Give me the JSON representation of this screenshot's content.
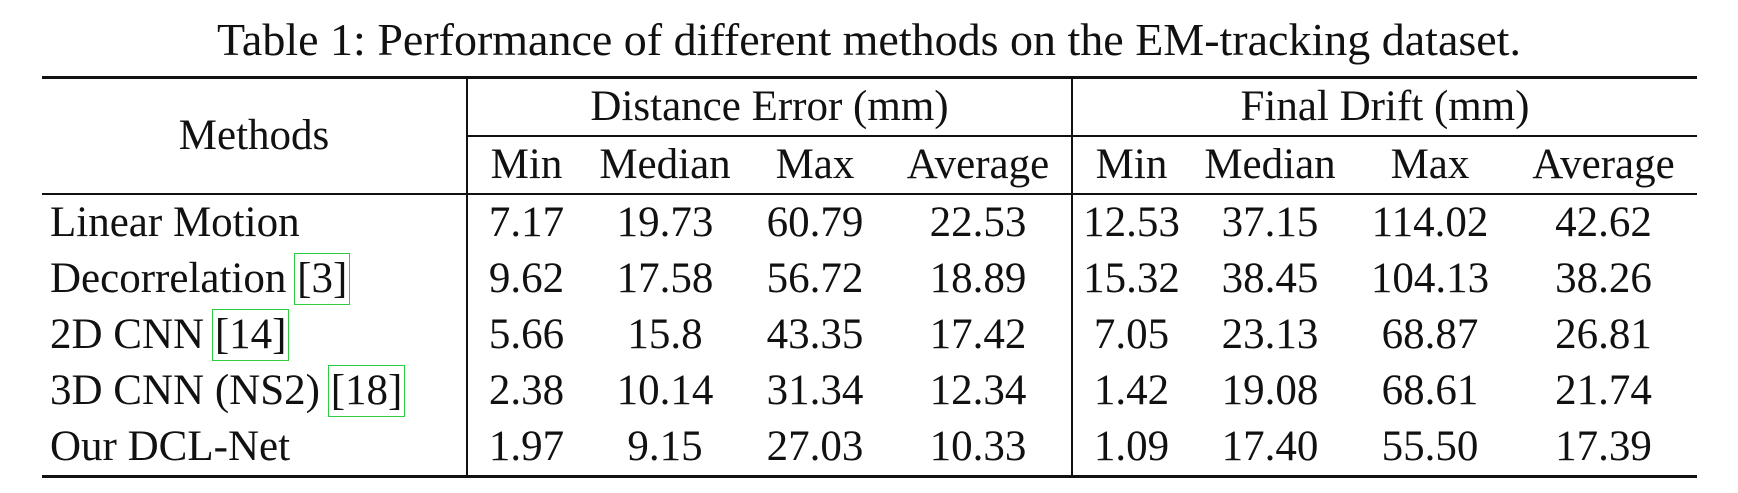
{
  "caption": "Table 1: Performance of different methods on the EM-tracking dataset.",
  "table": {
    "method_header": "Methods",
    "groups": [
      "Distance Error (mm)",
      "Final Drift (mm)"
    ],
    "subheaders": [
      "Min",
      "Median",
      "Max",
      "Average",
      "Min",
      "Median",
      "Max",
      "Average"
    ],
    "rows": [
      {
        "method": "Linear Motion",
        "values": [
          "7.17",
          "19.73",
          "60.79",
          "22.53",
          "12.53",
          "37.15",
          "114.02",
          "42.62"
        ]
      },
      {
        "method": "Decorrelation",
        "cite": "[3]",
        "values": [
          "9.62",
          "17.58",
          "56.72",
          "18.89",
          "15.32",
          "38.45",
          "104.13",
          "38.26"
        ]
      },
      {
        "method": "2D CNN",
        "cite": "[14]",
        "values": [
          "5.66",
          "15.8",
          "43.35",
          "17.42",
          "7.05",
          "23.13",
          "68.87",
          "26.81"
        ]
      },
      {
        "method": "3D CNN (NS2)",
        "cite": "[18]",
        "values": [
          "2.38",
          "10.14",
          "31.34",
          "12.34",
          "1.42",
          "19.08",
          "68.61",
          "21.74"
        ]
      },
      {
        "method": "Our DCL-Net",
        "bold": true,
        "values": [
          "1.97",
          "9.15",
          "27.03",
          "10.33",
          "1.09",
          "17.40",
          "55.50",
          "17.39"
        ]
      }
    ]
  }
}
